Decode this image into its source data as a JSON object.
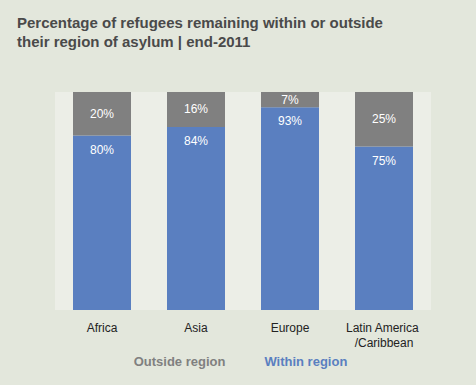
{
  "chart_data": {
    "type": "bar",
    "title": "Percentage of refugees remaining within or outside their region of asylum | end-2011",
    "categories": [
      "Africa",
      "Asia",
      "Europe",
      "Latin America /Caribbean"
    ],
    "series": [
      {
        "name": "Outside region",
        "color": "#808080",
        "values": [
          20,
          16,
          7,
          25
        ],
        "value_labels": [
          "20%",
          "16%",
          "7%",
          "25%"
        ]
      },
      {
        "name": "Within region",
        "color": "#5a7fc0",
        "values": [
          80,
          84,
          93,
          75
        ],
        "value_labels": [
          "80%",
          "84%",
          "93%",
          "75%"
        ]
      }
    ],
    "ylim": [
      0,
      100
    ],
    "stacked": true,
    "data_labels": true,
    "legend": "bottom",
    "grid": false,
    "tick_labels": "x"
  }
}
